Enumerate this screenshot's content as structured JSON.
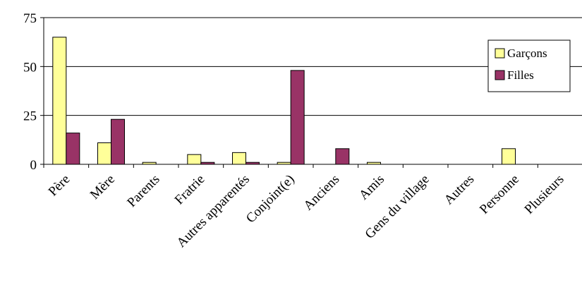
{
  "chart_data": {
    "type": "bar",
    "categories": [
      "Père",
      "Mère",
      "Parents",
      "Fratrie",
      "Autres apparentés",
      "Conjoint(e)",
      "Anciens",
      "Amis",
      "Gens du village",
      "Autres",
      "Personne",
      "Plusieurs"
    ],
    "series": [
      {
        "name": "Garçons",
        "color": "#FFFF99",
        "values": [
          65,
          11,
          1,
          5,
          6,
          1,
          0,
          1,
          0,
          0,
          8,
          0
        ]
      },
      {
        "name": "Filles",
        "color": "#993366",
        "values": [
          16,
          23,
          0,
          1,
          1,
          48,
          8,
          0,
          0,
          0,
          0,
          0
        ]
      }
    ],
    "yticks": [
      0,
      25,
      50,
      75
    ],
    "ylim": [
      0,
      75
    ],
    "grid": true,
    "legend_position": "right"
  }
}
